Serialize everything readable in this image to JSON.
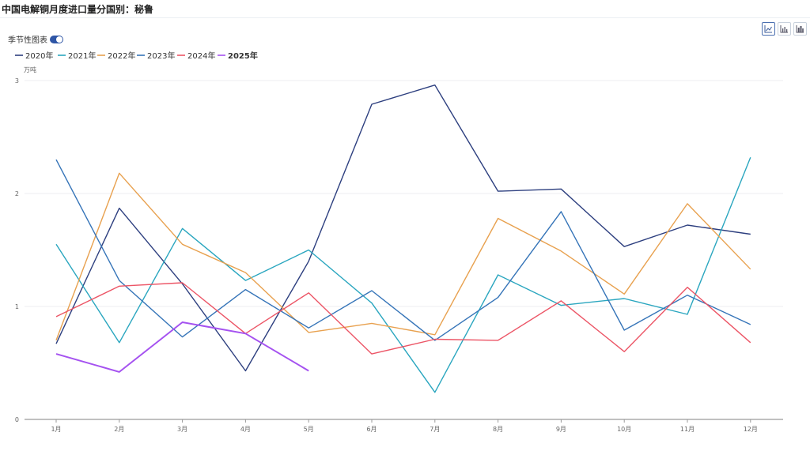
{
  "page": {
    "title": "中国电解铜月度进口量分国别：秘鲁"
  },
  "controls": {
    "seasonal_label": "季节性图表",
    "seasonal_on": true,
    "tools": [
      {
        "name": "line-chart-icon",
        "active": true
      },
      {
        "name": "bar-chart-icon",
        "active": false
      },
      {
        "name": "stacked-bar-chart-icon",
        "active": false
      }
    ]
  },
  "colors": {
    "grid": "#eceef2",
    "axis": "#9a9a9a",
    "tick_text": "#666666"
  },
  "chart_data": {
    "type": "line",
    "title": "中国电解铜月度进口量分国别：秘鲁",
    "ylabel": "万吨",
    "xlabel": "",
    "ylim": [
      0,
      3
    ],
    "yticks": [
      "0",
      "1",
      "2",
      "3"
    ],
    "categories": [
      "1月",
      "2月",
      "3月",
      "4月",
      "5月",
      "6月",
      "7月",
      "8月",
      "9月",
      "10月",
      "11月",
      "12月"
    ],
    "grid": true,
    "legend_position": "top-left",
    "series": [
      {
        "name": "2020年",
        "color": "#2d3f7f",
        "values": [
          0.67,
          1.87,
          1.2,
          0.43,
          1.4,
          2.79,
          2.96,
          2.02,
          2.04,
          1.53,
          1.72,
          1.64
        ]
      },
      {
        "name": "2021年",
        "color": "#2aa6bf",
        "values": [
          1.55,
          0.68,
          1.69,
          1.23,
          1.5,
          1.03,
          0.24,
          1.28,
          1.01,
          1.07,
          0.93,
          2.32
        ]
      },
      {
        "name": "2022年",
        "color": "#e8a14f",
        "values": [
          0.7,
          2.18,
          1.55,
          1.3,
          0.77,
          0.85,
          0.75,
          1.78,
          1.49,
          1.11,
          1.91,
          1.33
        ]
      },
      {
        "name": "2023年",
        "color": "#3574b8",
        "values": [
          2.3,
          1.23,
          0.73,
          1.15,
          0.81,
          1.14,
          0.7,
          1.08,
          1.84,
          0.79,
          1.1,
          0.84
        ]
      },
      {
        "name": "2024年",
        "color": "#ec5566",
        "values": [
          0.91,
          1.18,
          1.21,
          0.76,
          1.12,
          0.58,
          0.71,
          0.7,
          1.05,
          0.6,
          1.17,
          0.68
        ]
      },
      {
        "name": "2025年",
        "color": "#a552f0",
        "values": [
          0.58,
          0.42,
          0.86,
          0.76,
          0.43,
          null,
          null,
          null,
          null,
          null,
          null,
          null
        ],
        "bold": true
      }
    ]
  }
}
